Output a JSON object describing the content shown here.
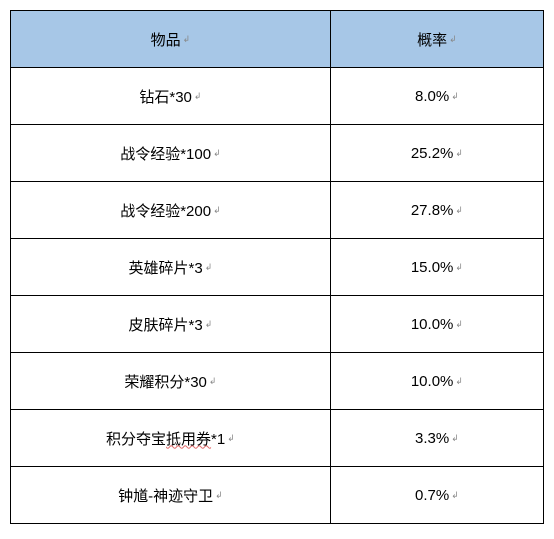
{
  "table": {
    "header_bg": "#a7c7e7",
    "border_color": "#000000",
    "columns": [
      {
        "label": "物品",
        "key": "item"
      },
      {
        "label": "概率",
        "key": "rate"
      }
    ],
    "rows": [
      {
        "item": "钻石*30",
        "rate": "8.0%"
      },
      {
        "item": "战令经验*100",
        "rate": "25.2%"
      },
      {
        "item": "战令经验*200",
        "rate": "27.8%"
      },
      {
        "item": "英雄碎片*3",
        "rate": "15.0%"
      },
      {
        "item": "皮肤碎片*3",
        "rate": "10.0%"
      },
      {
        "item": "荣耀积分*30",
        "rate": "10.0%"
      },
      {
        "item": "积分夺宝抵用券*1",
        "rate": "3.3%",
        "wavy_part": "抵用券"
      },
      {
        "item": "钟馗-神迹守卫",
        "rate": "0.7%"
      }
    ],
    "trail_glyph": "↲"
  }
}
